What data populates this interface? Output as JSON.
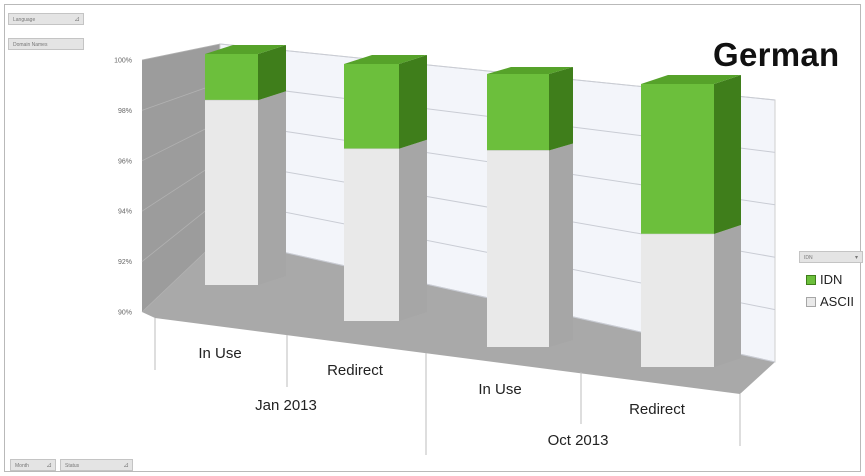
{
  "pivot": {
    "language_btn": "Language",
    "domain_btn": "Domain Names",
    "month_btn": "Month",
    "status_btn": "Status",
    "legend_filter": "IDN"
  },
  "colors": {
    "idn_front": "#6cbf3c",
    "idn_top": "#56a22a",
    "idn_side": "#3f7e1b",
    "ascii_front": "#e9e9e9",
    "ascii_top": "#f6f6f6",
    "ascii_side": "#a6a6a6"
  },
  "chart_data": {
    "type": "bar",
    "subtype": "3d-stacked-column",
    "title": "German",
    "categories": [
      "In Use",
      "Redirect",
      "In Use",
      "Redirect"
    ],
    "groups": [
      {
        "label": "Jan 2013",
        "categories": [
          "In Use",
          "Redirect"
        ]
      },
      {
        "label": "Oct 2013",
        "categories": [
          "In Use",
          "Redirect"
        ]
      }
    ],
    "series": [
      {
        "name": "ASCII",
        "values": [
          98.0,
          96.7,
          97.2,
          94.7
        ]
      },
      {
        "name": "IDN",
        "values": [
          2.0,
          3.3,
          2.8,
          5.3
        ]
      }
    ],
    "ylim": [
      90,
      100
    ],
    "yticks": [
      "90%",
      "92%",
      "94%",
      "96%",
      "98%",
      "100%"
    ],
    "grid": true,
    "legend": "right"
  }
}
